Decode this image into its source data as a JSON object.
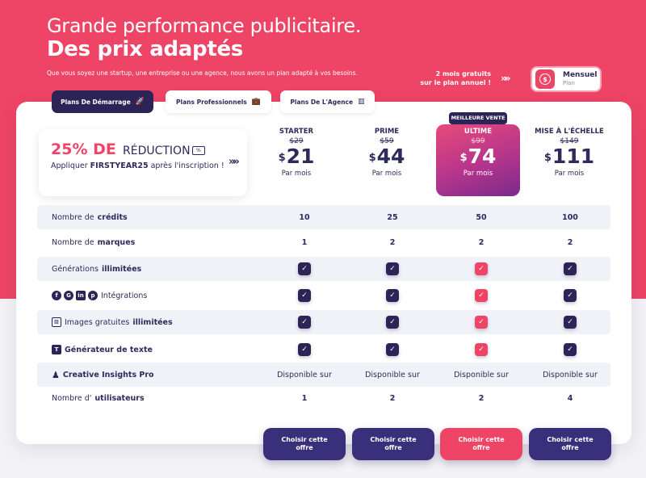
{
  "header": {
    "title": "Grande performance publicitaire.",
    "title_bold": "Des prix adaptés",
    "subtitle": "Que vous soyez une startup, une entreprise ou une agence, nous avons un plan adapté à vos besoins.",
    "promo_line1": "2 mois gratuits",
    "promo_line2": "sur le plan annuel !",
    "billing_title": "Mensuel",
    "billing_sub": "Plan"
  },
  "tabs": [
    {
      "label": "Plans De Démarrage",
      "icon": "rocket-icon"
    },
    {
      "label": "Plans Professionnels",
      "icon": "briefcase-icon"
    },
    {
      "label": "Plans De L'Agence",
      "icon": "building-icon"
    }
  ],
  "discount": {
    "percent": "25% DE",
    "word": "RÉDUCTION",
    "tag": "%",
    "line_prefix": "Appliquer ",
    "code": "FIRSTYEAR25",
    "line_suffix": " après l'inscription !"
  },
  "plans": [
    {
      "name": "STARTER",
      "old_price": "$29",
      "currency": "$",
      "price": "21",
      "period": "Par mois"
    },
    {
      "name": "PRIME",
      "old_price": "$59",
      "currency": "$",
      "price": "44",
      "period": "Par mois"
    },
    {
      "name": "ULTIME",
      "old_price": "$99",
      "currency": "$",
      "price": "74",
      "period": "Par mois",
      "badge": "MEILLEURE VENTE"
    },
    {
      "name": "MISE À L'ÉCHELLE",
      "old_price": "$149",
      "currency": "$",
      "price": "111",
      "period": "Par mois"
    }
  ],
  "features": {
    "credits": {
      "label_a": "Nombre de ",
      "label_b": "crédits",
      "values": [
        "10",
        "25",
        "50",
        "100"
      ]
    },
    "brands": {
      "label_a": "Nombre de ",
      "label_b": "marques",
      "values": [
        "1",
        "2",
        "2",
        "2"
      ]
    },
    "generations": {
      "label_a": "Générations ",
      "label_b": "illimitées"
    },
    "integrations": {
      "label": "Intégrations"
    },
    "images": {
      "label_a": "Images gratuites ",
      "label_b": "illimitées"
    },
    "textgen": {
      "label": "Générateur de texte"
    },
    "insights": {
      "label": "Creative Insights Pro",
      "values": [
        "Disponible sur",
        "Disponible sur",
        "Disponible sur",
        "Disponible sur"
      ]
    },
    "users": {
      "label_a": "Nombre d'",
      "label_b": "utilisateurs",
      "values": [
        "1",
        "2",
        "2",
        "4"
      ]
    }
  },
  "cta": {
    "label": "Choisir cette offre"
  },
  "colors": {
    "accent": "#ee4466",
    "navy": "#2c2457"
  }
}
